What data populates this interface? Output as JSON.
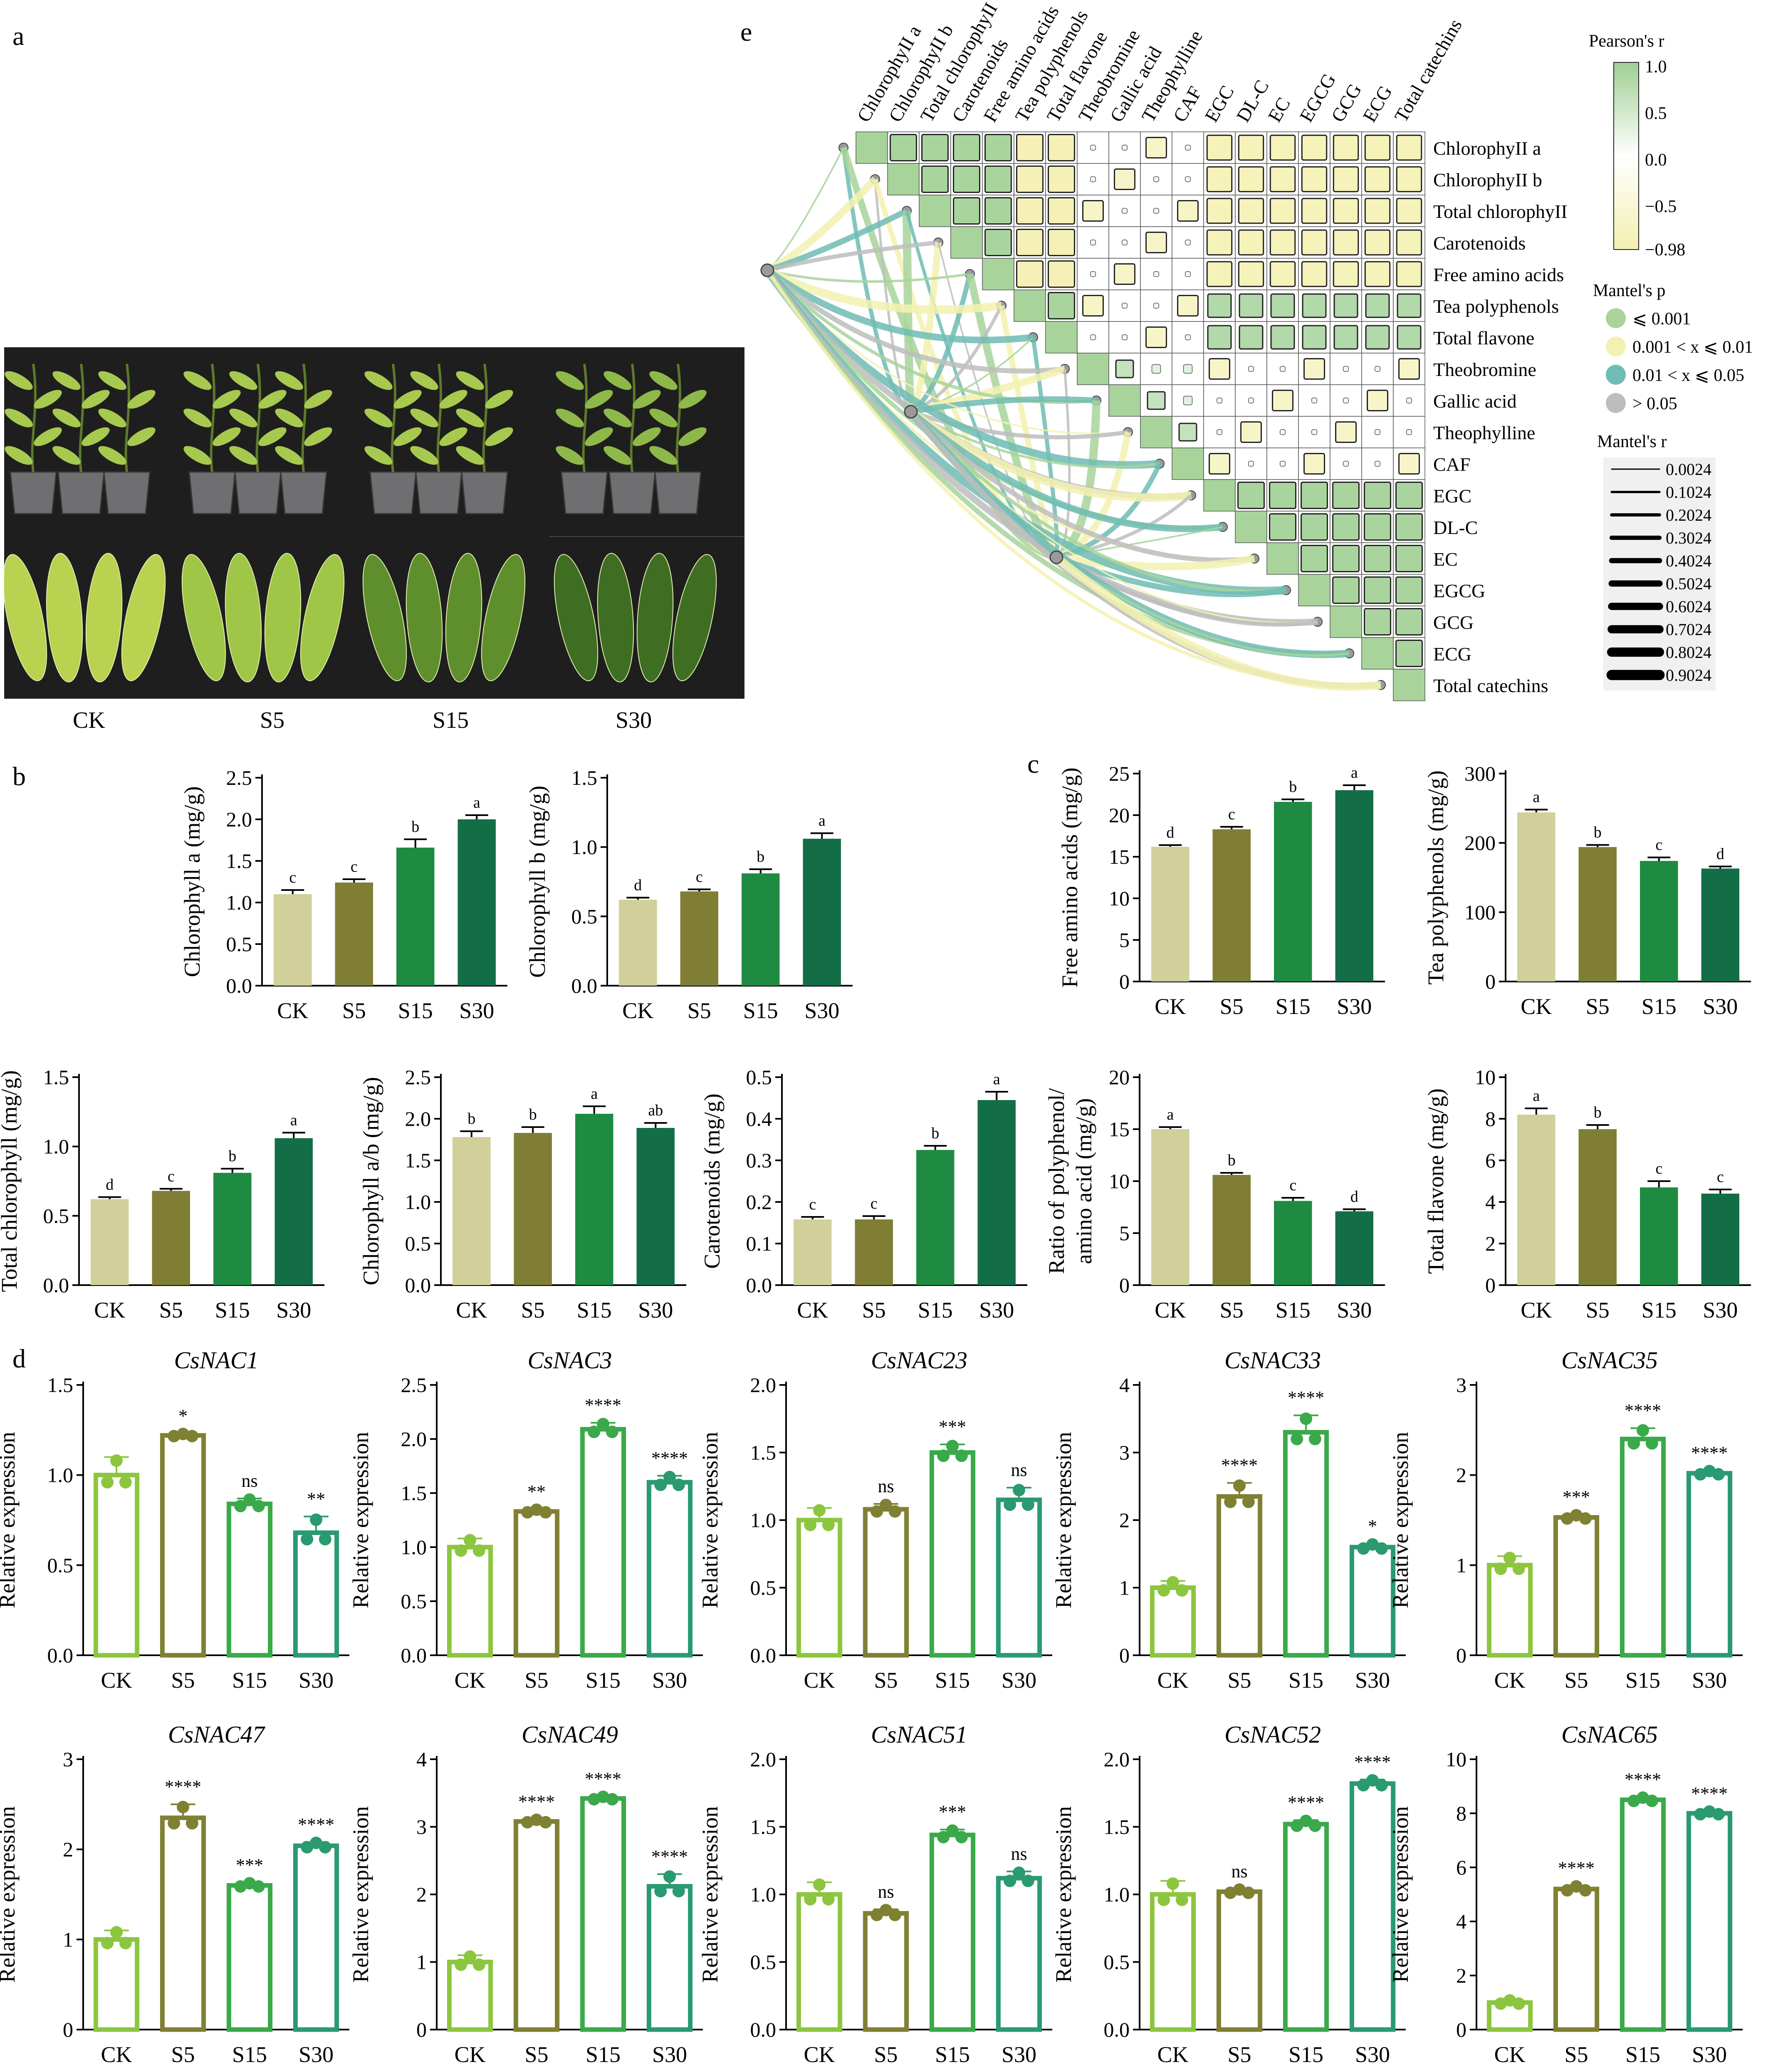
{
  "panels": {
    "a": "a",
    "b": "b",
    "c": "c",
    "d": "d",
    "e": "e"
  },
  "photo_groups": [
    "CK",
    "S5",
    "S15",
    "S30"
  ],
  "colors": {
    "ck": "#d1cf9a",
    "s5": "#7f7e34",
    "s15": "#1f8b42",
    "s30": "#136e47",
    "nac_ck": "#8cc63f",
    "nac_s5": "#808033",
    "nac_s15": "#3aa94a",
    "nac_s30": "#2a9a70",
    "heat_hi": "#9fcf93",
    "heat_mid": "#ffffff",
    "heat_lo": "#f4f0b0",
    "p1": "#a8d49b",
    "p2": "#f3f1b0",
    "p3": "#6ebcb4",
    "p4": "#bdbdbd"
  },
  "chart_data": [
    {
      "id": "b1",
      "type": "bar",
      "categories": [
        "CK",
        "S5",
        "S15",
        "S30"
      ],
      "values": [
        1.1,
        1.24,
        1.66,
        2.0
      ],
      "errors": [
        0.05,
        0.04,
        0.1,
        0.05
      ],
      "letters": [
        "c",
        "c",
        "b",
        "a"
      ],
      "ylabel": "Chlorophyll a (mg/g)",
      "ylim": [
        0,
        2.5
      ],
      "yticks": [
        "0.0",
        "0.5",
        "1.0",
        "1.5",
        "2.0",
        "2.5"
      ]
    },
    {
      "id": "b2",
      "type": "bar",
      "categories": [
        "CK",
        "S5",
        "S15",
        "S30"
      ],
      "values": [
        0.62,
        0.68,
        0.81,
        1.06
      ],
      "errors": [
        0.015,
        0.015,
        0.03,
        0.04
      ],
      "letters": [
        "d",
        "c",
        "b",
        "a"
      ],
      "ylabel": "Chlorophyll b (mg/g)",
      "ylim": [
        0,
        1.5
      ],
      "yticks": [
        "0.0",
        "0.5",
        "1.0",
        "1.5"
      ]
    },
    {
      "id": "b3",
      "type": "bar",
      "categories": [
        "CK",
        "S5",
        "S15",
        "S30"
      ],
      "values": [
        0.62,
        0.68,
        0.81,
        1.06
      ],
      "errors": [
        0.015,
        0.015,
        0.03,
        0.04
      ],
      "letters": [
        "d",
        "c",
        "b",
        "a"
      ],
      "ylabel": "Total chlorophyll (mg/g)",
      "ylim": [
        0,
        1.5
      ],
      "yticks": [
        "0.0",
        "0.5",
        "1.0",
        "1.5"
      ]
    },
    {
      "id": "b4",
      "type": "bar",
      "categories": [
        "CK",
        "S5",
        "S15",
        "S30"
      ],
      "values": [
        1.78,
        1.83,
        2.06,
        1.89
      ],
      "errors": [
        0.07,
        0.07,
        0.09,
        0.06
      ],
      "letters": [
        "b",
        "b",
        "a",
        "ab"
      ],
      "ylabel": "Chlorophyll a/b (mg/g)",
      "ylim": [
        0,
        2.5
      ],
      "yticks": [
        "0.0",
        "0.5",
        "1.0",
        "1.5",
        "2.0",
        "2.5"
      ]
    },
    {
      "id": "b5",
      "type": "bar",
      "categories": [
        "CK",
        "S5",
        "S15",
        "S30"
      ],
      "values": [
        0.158,
        0.158,
        0.325,
        0.445
      ],
      "errors": [
        0.006,
        0.008,
        0.01,
        0.02
      ],
      "letters": [
        "c",
        "c",
        "b",
        "a"
      ],
      "ylabel": "Carotenoids (mg/g)",
      "ylim": [
        0,
        0.5
      ],
      "yticks": [
        "0.0",
        "0.1",
        "0.2",
        "0.3",
        "0.4",
        "0.5"
      ]
    },
    {
      "id": "c1",
      "type": "bar",
      "categories": [
        "CK",
        "S5",
        "S15",
        "S30"
      ],
      "values": [
        16.2,
        18.3,
        21.6,
        23.0
      ],
      "errors": [
        0.2,
        0.3,
        0.3,
        0.6
      ],
      "letters": [
        "d",
        "c",
        "b",
        "a"
      ],
      "ylabel": "Free amino acids (mg/g)",
      "ylim": [
        0,
        25
      ],
      "yticks": [
        "0",
        "5",
        "10",
        "15",
        "20",
        "25"
      ]
    },
    {
      "id": "c2",
      "type": "bar",
      "categories": [
        "CK",
        "S5",
        "S15",
        "S30"
      ],
      "values": [
        244,
        194,
        174,
        163
      ],
      "errors": [
        4,
        3,
        5,
        3
      ],
      "letters": [
        "a",
        "b",
        "c",
        "d"
      ],
      "ylabel": "Tea polyphenols (mg/g)",
      "ylim": [
        0,
        300
      ],
      "yticks": [
        "0",
        "100",
        "200",
        "300"
      ]
    },
    {
      "id": "c3",
      "type": "bar",
      "categories": [
        "CK",
        "S5",
        "S15",
        "S30"
      ],
      "values": [
        15.0,
        10.6,
        8.1,
        7.1
      ],
      "errors": [
        0.2,
        0.2,
        0.3,
        0.2
      ],
      "letters": [
        "a",
        "b",
        "c",
        "d"
      ],
      "ylabel": "Ratio of polyphenol/ amino acid (mg/g)",
      "ylim": [
        0,
        20
      ],
      "yticks": [
        "0",
        "5",
        "10",
        "15",
        "20"
      ]
    },
    {
      "id": "c4",
      "type": "bar",
      "categories": [
        "CK",
        "S5",
        "S15",
        "S30"
      ],
      "values": [
        8.2,
        7.5,
        4.7,
        4.4
      ],
      "errors": [
        0.3,
        0.2,
        0.3,
        0.2
      ],
      "letters": [
        "a",
        "b",
        "c",
        "c"
      ],
      "ylabel": "Total flavone (mg/g)",
      "ylim": [
        0,
        10
      ],
      "yticks": [
        "0",
        "2",
        "4",
        "6",
        "8",
        "10"
      ]
    },
    {
      "id": "d1",
      "type": "bar",
      "title": "CsNAC1",
      "categories": [
        "CK",
        "S5",
        "S15",
        "S30"
      ],
      "values": [
        1.0,
        1.22,
        0.84,
        0.68
      ],
      "errors": [
        0.1,
        0.01,
        0.03,
        0.09
      ],
      "sig": [
        "",
        "*",
        "ns",
        "**"
      ],
      "ylabel": "Relative expression",
      "ylim": [
        0,
        1.5
      ],
      "yticks": [
        "0.0",
        "0.5",
        "1.0",
        "1.5"
      ]
    },
    {
      "id": "d2",
      "type": "bar",
      "title": "CsNAC3",
      "categories": [
        "CK",
        "S5",
        "S15",
        "S30"
      ],
      "values": [
        1.0,
        1.33,
        2.09,
        1.6
      ],
      "errors": [
        0.08,
        0.02,
        0.06,
        0.06
      ],
      "sig": [
        "",
        "**",
        "****",
        "****"
      ],
      "ylabel": "Relative expression",
      "ylim": [
        0,
        2.5
      ],
      "yticks": [
        "0.0",
        "0.5",
        "1.0",
        "1.5",
        "2.0",
        "2.5"
      ]
    },
    {
      "id": "d3",
      "type": "bar",
      "title": "CsNAC23",
      "categories": [
        "CK",
        "S5",
        "S15",
        "S30"
      ],
      "values": [
        1.0,
        1.08,
        1.5,
        1.15
      ],
      "errors": [
        0.09,
        0.04,
        0.06,
        0.09
      ],
      "sig": [
        "",
        "ns",
        "***",
        "ns"
      ],
      "ylabel": "Relative expression",
      "ylim": [
        0,
        2.0
      ],
      "yticks": [
        "0.0",
        "0.5",
        "1.0",
        "1.5",
        "2.0"
      ]
    },
    {
      "id": "d4",
      "type": "bar",
      "title": "CsNAC33",
      "categories": [
        "CK",
        "S5",
        "S15",
        "S30"
      ],
      "values": [
        1.0,
        2.35,
        3.3,
        1.6
      ],
      "errors": [
        0.1,
        0.2,
        0.25,
        0.05
      ],
      "sig": [
        "",
        "****",
        "****",
        "*"
      ],
      "ylabel": "Relative expression",
      "ylim": [
        0,
        4
      ],
      "yticks": [
        "0",
        "1",
        "2",
        "3",
        "4"
      ]
    },
    {
      "id": "d5",
      "type": "bar",
      "title": "CsNAC35",
      "categories": [
        "CK",
        "S5",
        "S15",
        "S30"
      ],
      "values": [
        1.0,
        1.53,
        2.4,
        2.02
      ],
      "errors": [
        0.1,
        0.03,
        0.12,
        0.03
      ],
      "sig": [
        "",
        "***",
        "****",
        "****"
      ],
      "ylabel": "Relative expression",
      "ylim": [
        0,
        3
      ],
      "yticks": [
        "0",
        "1",
        "2",
        "3"
      ]
    },
    {
      "id": "d6",
      "type": "bar",
      "title": "CsNAC47",
      "categories": [
        "CK",
        "S5",
        "S15",
        "S30"
      ],
      "values": [
        1.0,
        2.35,
        1.6,
        2.04
      ],
      "errors": [
        0.1,
        0.15,
        0.03,
        0.04
      ],
      "sig": [
        "",
        "****",
        "***",
        "****"
      ],
      "ylabel": "Relative expression",
      "ylim": [
        0,
        3
      ],
      "yticks": [
        "0",
        "1",
        "2",
        "3"
      ]
    },
    {
      "id": "d7",
      "type": "bar",
      "title": "CsNAC49",
      "categories": [
        "CK",
        "S5",
        "S15",
        "S30"
      ],
      "values": [
        1.0,
        3.08,
        3.42,
        2.12
      ],
      "errors": [
        0.1,
        0.03,
        0.03,
        0.18
      ],
      "sig": [
        "",
        "****",
        "****",
        "****"
      ],
      "ylabel": "Relative expression",
      "ylim": [
        0,
        4
      ],
      "yticks": [
        "0",
        "1",
        "2",
        "3",
        "4"
      ]
    },
    {
      "id": "d8",
      "type": "bar",
      "title": "CsNAC51",
      "categories": [
        "CK",
        "S5",
        "S15",
        "S30"
      ],
      "values": [
        1.0,
        0.86,
        1.44,
        1.12
      ],
      "errors": [
        0.09,
        0.03,
        0.04,
        0.05
      ],
      "sig": [
        "",
        "ns",
        "***",
        "ns"
      ],
      "ylabel": "Relative expression",
      "ylim": [
        0,
        2.0
      ],
      "yticks": [
        "0.0",
        "0.5",
        "1.0",
        "1.5",
        "2.0"
      ]
    },
    {
      "id": "d9",
      "type": "bar",
      "title": "CsNAC52",
      "categories": [
        "CK",
        "S5",
        "S15",
        "S30"
      ],
      "values": [
        1.0,
        1.02,
        1.52,
        1.82
      ],
      "errors": [
        0.1,
        0.02,
        0.03,
        0.03
      ],
      "sig": [
        "",
        "ns",
        "****",
        "****"
      ],
      "ylabel": "Relative expression",
      "ylim": [
        0,
        2.0
      ],
      "yticks": [
        "0.0",
        "0.5",
        "1.0",
        "1.5",
        "2.0"
      ]
    },
    {
      "id": "d10",
      "type": "bar",
      "title": "CsNAC65",
      "categories": [
        "CK",
        "S5",
        "S15",
        "S30"
      ],
      "values": [
        1.0,
        5.2,
        8.5,
        8.0
      ],
      "errors": [
        0.1,
        0.12,
        0.1,
        0.08
      ],
      "sig": [
        "",
        "****",
        "****",
        "****"
      ],
      "ylabel": "Relative expression",
      "ylim": [
        0,
        10
      ],
      "yticks": [
        "0",
        "2",
        "4",
        "6",
        "8",
        "10"
      ]
    },
    {
      "id": "e",
      "type": "heatmap",
      "variables": [
        "ChlorophyII a",
        "ChlorophyII b",
        "Total chlorophyII",
        "Carotenoids",
        "Free amino acids",
        "Tea polyphenols",
        "Total flavone",
        "Theobromine",
        "Gallic acid",
        "Theophylline",
        "CAF",
        "EGC",
        "DL-C",
        "EC",
        "EGCG",
        "GCG",
        "ECG",
        "Total catechins"
      ],
      "legend_title": "Pearson's r",
      "legend_ticks": [
        "1.0",
        "0.5",
        "0.0",
        "−0.5",
        "−0.98"
      ],
      "r_range": [
        -0.98,
        1.0
      ],
      "mantel_p_title": "Mantel's p",
      "mantel_p_labels": [
        "⩽ 0.001",
        "0.001 < x ⩽ 0.01",
        "0.01 < x ⩽ 0.05",
        "> 0.05"
      ],
      "mantel_r_title": "Mantel's r",
      "mantel_r_labels": [
        "0.0024",
        "0.1024",
        "0.2024",
        "0.3024",
        "0.4024",
        "0.5024",
        "0.6024",
        "0.7024",
        "0.8024",
        "0.9024"
      ]
    }
  ]
}
